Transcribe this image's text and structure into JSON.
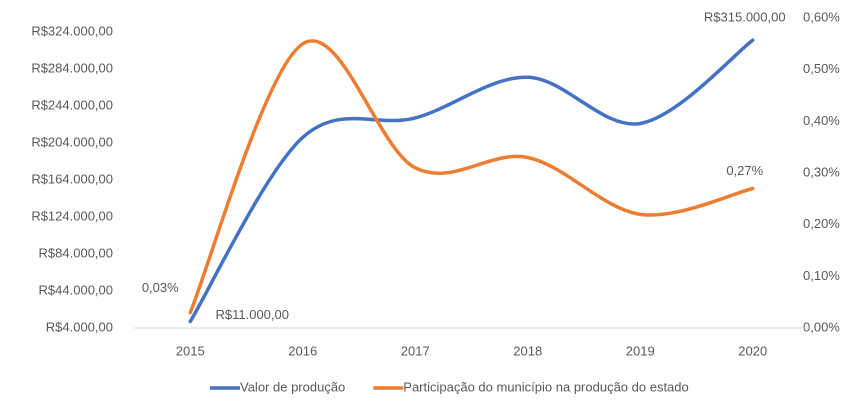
{
  "chart_data": {
    "type": "line",
    "categories": [
      "2015",
      "2016",
      "2017",
      "2018",
      "2019",
      "2020"
    ],
    "series": [
      {
        "name": "Valor de produção",
        "color": "#4472c4",
        "values": [
          11000,
          210000,
          231000,
          275000,
          225000,
          315000
        ],
        "value_labels": [
          "R$11.000,00",
          null,
          null,
          null,
          null,
          "R$315.000,00"
        ]
      },
      {
        "name": "Participação do município na produção do estado",
        "color": "#ed7d31",
        "axis": "y2",
        "values": [
          0.03,
          0.55,
          0.31,
          0.33,
          0.22,
          0.27
        ],
        "value_labels": [
          "0,03%",
          null,
          null,
          null,
          null,
          "0,27%"
        ]
      }
    ],
    "ylim": [
      4000,
      339000
    ],
    "yticks": [
      {
        "value": 4000,
        "label": "R$4.000,00"
      },
      {
        "value": 44000,
        "label": "R$44.000,00"
      },
      {
        "value": 84000,
        "label": "R$84.000,00"
      },
      {
        "value": 124000,
        "label": "R$124.000,00"
      },
      {
        "value": 164000,
        "label": "R$164.000,00"
      },
      {
        "value": 204000,
        "label": "R$204.000,00"
      },
      {
        "value": 244000,
        "label": "R$244.000,00"
      },
      {
        "value": 284000,
        "label": "R$284.000,00"
      },
      {
        "value": 324000,
        "label": "R$324.000,00"
      }
    ],
    "y2lim": [
      0,
      0.6
    ],
    "y2ticks": [
      {
        "value": 0,
        "label": "0,00%"
      },
      {
        "value": 0.1,
        "label": "0,10%"
      },
      {
        "value": 0.2,
        "label": "0,20%"
      },
      {
        "value": 0.3,
        "label": "0,30%"
      },
      {
        "value": 0.4,
        "label": "0,40%"
      },
      {
        "value": 0.5,
        "label": "0,50%"
      },
      {
        "value": 0.6,
        "label": "0,60%"
      }
    ],
    "legend": "bottom"
  }
}
